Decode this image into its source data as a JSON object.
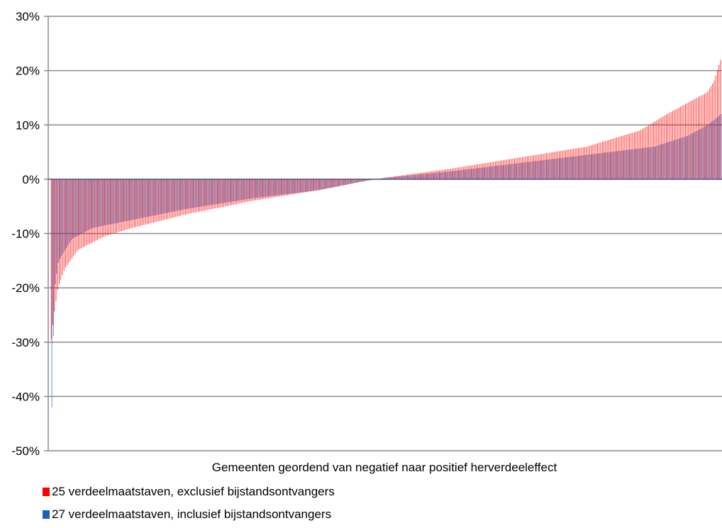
{
  "chart_data": {
    "type": "bar",
    "title": "",
    "xlabel": "Gemeenten geordend van negatief naar positief herverdeeleffect",
    "ylabel": "",
    "ylim": [
      -50,
      30
    ],
    "yticks": [
      -50,
      -40,
      -30,
      -20,
      -10,
      0,
      10,
      20,
      30
    ],
    "ytick_labels": [
      "-50%",
      "-40%",
      "-30%",
      "-20%",
      "-10%",
      "0%",
      "10%",
      "20%",
      "30%"
    ],
    "grid": true,
    "legend_position": "bottom-left",
    "n_categories": 420,
    "series": [
      {
        "name": "25 verdeelmaatstaven, exclusief bijstandsontvangers",
        "color": "#ff0000",
        "profile": [
          [
            0,
            -29.5
          ],
          [
            0.004,
            -25
          ],
          [
            0.01,
            -20
          ],
          [
            0.02,
            -16.5
          ],
          [
            0.04,
            -13
          ],
          [
            0.08,
            -10.5
          ],
          [
            0.12,
            -9
          ],
          [
            0.2,
            -6.5
          ],
          [
            0.3,
            -4
          ],
          [
            0.4,
            -2
          ],
          [
            0.47,
            -0.3
          ],
          [
            0.5,
            0.3
          ],
          [
            0.6,
            2
          ],
          [
            0.7,
            4
          ],
          [
            0.8,
            6
          ],
          [
            0.88,
            9
          ],
          [
            0.92,
            12
          ],
          [
            0.95,
            14
          ],
          [
            0.98,
            16
          ],
          [
            0.99,
            18
          ],
          [
            1.0,
            22
          ]
        ]
      },
      {
        "name": "27 verdeelmaatstaven, inclusief bijstandsontvangers",
        "color": "#1f5fbf",
        "profile": [
          [
            0,
            -42
          ],
          [
            0.004,
            -20
          ],
          [
            0.01,
            -15
          ],
          [
            0.03,
            -11
          ],
          [
            0.06,
            -9
          ],
          [
            0.1,
            -8
          ],
          [
            0.2,
            -5.5
          ],
          [
            0.3,
            -3.5
          ],
          [
            0.4,
            -2
          ],
          [
            0.47,
            -0.3
          ],
          [
            0.5,
            0.3
          ],
          [
            0.6,
            1.5
          ],
          [
            0.7,
            3
          ],
          [
            0.8,
            4.5
          ],
          [
            0.9,
            6
          ],
          [
            0.95,
            8
          ],
          [
            0.98,
            10
          ],
          [
            1.0,
            12
          ]
        ]
      }
    ]
  }
}
